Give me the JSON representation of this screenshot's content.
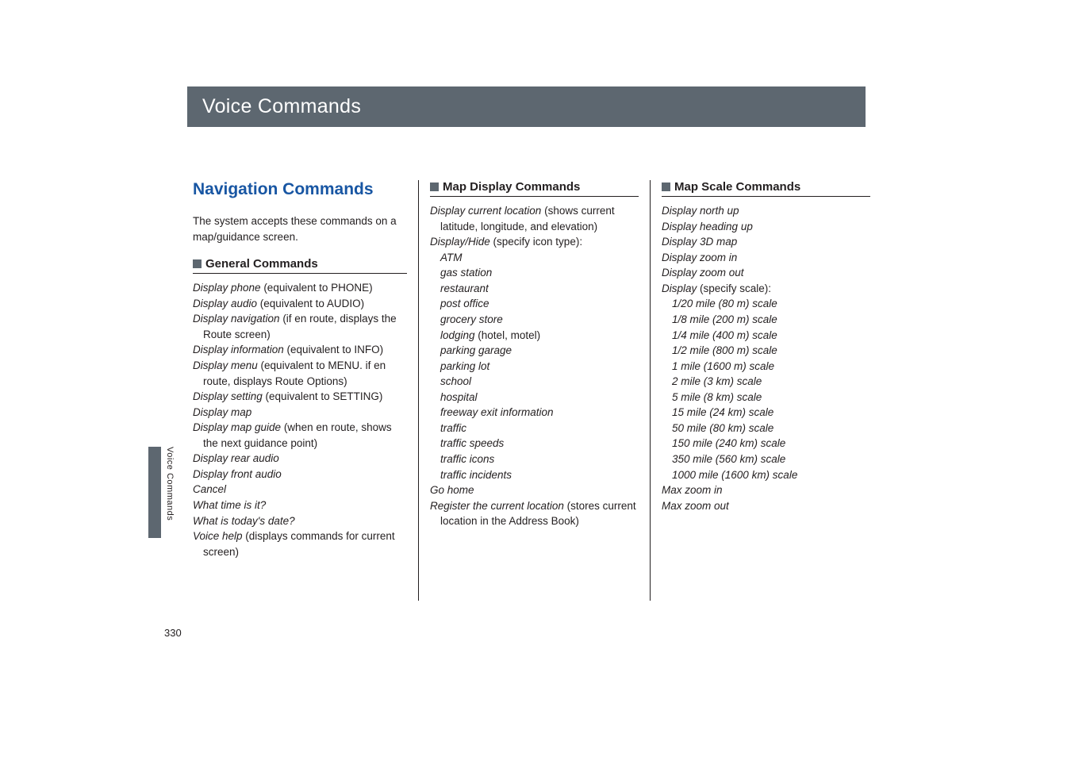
{
  "page": {
    "header_title": "Voice Commands",
    "section_title": "Navigation Commands",
    "intro": "The system accepts these commands on a map/guidance screen.",
    "page_number": "330",
    "side_label": "Voice Commands"
  },
  "col1": {
    "subhead": "General Commands",
    "items": [
      {
        "cmd": "Display phone",
        "rest": " (equivalent to PHONE)"
      },
      {
        "cmd": "Display audio",
        "rest": " (equivalent to AUDIO)"
      },
      {
        "cmd": "Display navigation",
        "rest": " (if en route, displays the Route screen)"
      },
      {
        "cmd": "Display information",
        "rest": " (equivalent to INFO)"
      },
      {
        "cmd": "Display menu",
        "rest": " (equivalent to MENU. if en route, displays Route Options)"
      },
      {
        "cmd": "Display setting",
        "rest": " (equivalent to SETTING)"
      },
      {
        "cmd": "Display map",
        "rest": ""
      },
      {
        "cmd": "Display map guide",
        "rest": " (when en route, shows the next guidance point)"
      },
      {
        "cmd": "Display rear audio",
        "rest": ""
      },
      {
        "cmd": "Display front audio",
        "rest": ""
      },
      {
        "cmd": "Cancel",
        "rest": ""
      },
      {
        "cmd": "What time is it?",
        "rest": ""
      },
      {
        "cmd": "What is today's date?",
        "rest": ""
      },
      {
        "cmd": "Voice help",
        "rest": " (displays commands for current screen)"
      }
    ]
  },
  "col2": {
    "subhead": "Map Display Commands",
    "line1_cmd": "Display current location",
    "line1_rest": " (shows current latitude, longitude, and elevation)",
    "line2_cmd": "Display/Hide",
    "line2_rest": " (specify icon type):",
    "icon_types": [
      "ATM",
      "gas station",
      "restaurant",
      "post office",
      "grocery store"
    ],
    "lodging_cmd": "lodging",
    "lodging_rest": " (hotel, motel)",
    "icon_types2": [
      "parking garage",
      "parking lot",
      "school",
      "hospital",
      "freeway exit information",
      "traffic",
      "traffic speeds",
      "traffic icons",
      "traffic incidents"
    ],
    "gohome": "Go home",
    "register_cmd": "Register the current location",
    "register_rest": " (stores current location in the Address Book)"
  },
  "col3": {
    "subhead": "Map Scale Commands",
    "items": [
      "Display north up",
      "Display heading up",
      "Display 3D map",
      "Display zoom in",
      "Display zoom out"
    ],
    "scale_cmd": "Display",
    "scale_rest": " (specify scale):",
    "scales": [
      "1/20 mile (80 m) scale",
      "1/8 mile (200 m) scale",
      "1/4 mile (400 m) scale",
      "1/2 mile (800 m) scale",
      "1 mile (1600 m) scale",
      "2 mile (3 km) scale",
      "5 mile (8 km) scale",
      "15 mile (24 km) scale",
      "50 mile (80 km) scale",
      "150 mile (240 km) scale",
      "350 mile (560 km) scale",
      "1000 mile (1600 km) scale"
    ],
    "tail": [
      "Max zoom in",
      "Max zoom out"
    ]
  },
  "colors": {
    "header_bg": "#5d6770",
    "accent": "#1856a3",
    "text": "#231f20",
    "page_bg": "#ffffff"
  },
  "fonts": {
    "body_size_pt": 10,
    "header_size_pt": 19,
    "section_size_pt": 16,
    "sub_size_pt": 11
  }
}
